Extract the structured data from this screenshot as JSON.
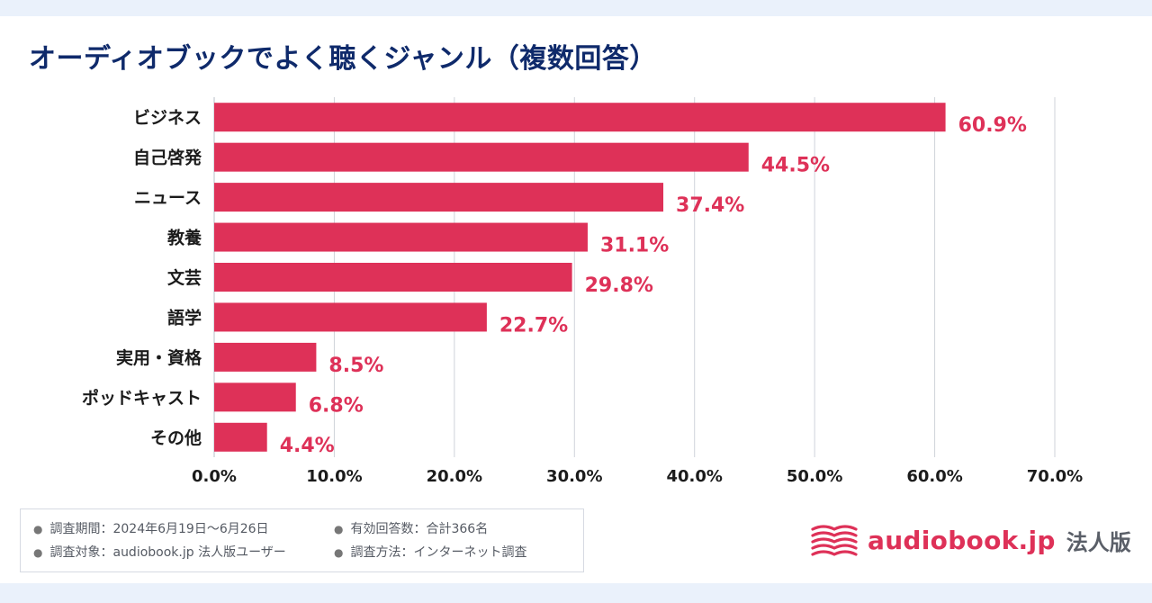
{
  "title": "オーディオブックでよく聴くジャンル（複数回答）",
  "chart_data": {
    "type": "bar",
    "orientation": "horizontal",
    "title": "オーディオブックでよく聴くジャンル（複数回答）",
    "categories": [
      "ビジネス",
      "自己啓発",
      "ニュース",
      "教養",
      "文芸",
      "語学",
      "実用・資格",
      "ポッドキャスト",
      "その他"
    ],
    "values": [
      60.9,
      44.5,
      37.4,
      31.1,
      29.8,
      22.7,
      8.5,
      6.8,
      4.4
    ],
    "value_labels": [
      "60.9%",
      "44.5%",
      "37.4%",
      "31.1%",
      "29.8%",
      "22.7%",
      "8.5%",
      "6.8%",
      "4.4%"
    ],
    "xlim": [
      0,
      70
    ],
    "ticks": [
      0,
      10,
      20,
      30,
      40,
      50,
      60,
      70
    ],
    "tick_labels": [
      "0.0%",
      "10.0%",
      "20.0%",
      "30.0%",
      "40.0%",
      "50.0%",
      "60.0%",
      "70.0%"
    ],
    "xlabel": "",
    "ylabel": "",
    "grid": true,
    "bar_color": "#de3158",
    "label_color": "#de3158",
    "grid_color": "#cfd3da"
  },
  "footnotes": [
    "調査期間：2024年6月19日〜6月26日",
    "有効回答数：合計366名",
    "調査対象：audiobook.jp 法人版ユーザー",
    "調査方法：インターネット調査"
  ],
  "brand": {
    "name": "audiobook.jp",
    "suffix": "法人版",
    "color": "#de3158",
    "logo_icon": "open-book-icon"
  },
  "colors": {
    "title": "#0f2a6b",
    "background": "#eaf1fb"
  }
}
